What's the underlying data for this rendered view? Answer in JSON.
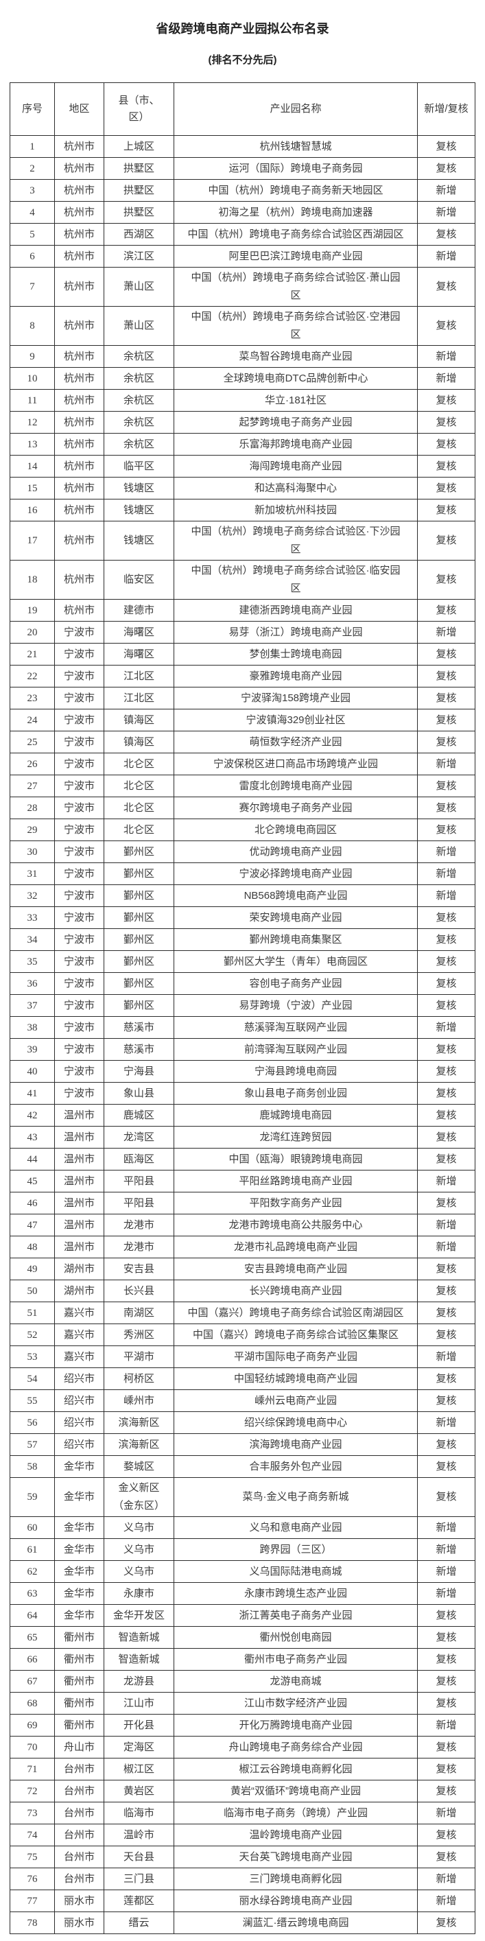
{
  "title": "省级跨境电商产业园拟公布名录",
  "subtitle": "(排名不分先后)",
  "colors": {
    "background": "#ffffff",
    "text": "#3c3c3c",
    "border": "#2b2b2b"
  },
  "table": {
    "headers": {
      "no": "序号",
      "city": "地区",
      "county": "县（市、\n区）",
      "park": "产业园名称",
      "status": "新增/复核"
    },
    "rows": [
      {
        "no": "1",
        "city": "杭州市",
        "county": "上城区",
        "park": "杭州钱塘智慧城",
        "status": "复核"
      },
      {
        "no": "2",
        "city": "杭州市",
        "county": "拱墅区",
        "park": "运河（国际）跨境电子商务园",
        "status": "复核"
      },
      {
        "no": "3",
        "city": "杭州市",
        "county": "拱墅区",
        "park": "中国（杭州）跨境电子商务新天地园区",
        "status": "新增"
      },
      {
        "no": "4",
        "city": "杭州市",
        "county": "拱墅区",
        "park": "初海之星（杭州）跨境电商加速器",
        "status": "新增"
      },
      {
        "no": "5",
        "city": "杭州市",
        "county": "西湖区",
        "park": "中国（杭州）跨境电子商务综合试验区西湖园区",
        "status": "复核"
      },
      {
        "no": "6",
        "city": "杭州市",
        "county": "滨江区",
        "park": "阿里巴巴滨江跨境电商产业园",
        "status": "新增"
      },
      {
        "no": "7",
        "city": "杭州市",
        "county": "萧山区",
        "park": "中国（杭州）跨境电子商务综合试验区·萧山园\n区",
        "status": "复核"
      },
      {
        "no": "8",
        "city": "杭州市",
        "county": "萧山区",
        "park": "中国（杭州）跨境电子商务综合试验区·空港园\n区",
        "status": "复核"
      },
      {
        "no": "9",
        "city": "杭州市",
        "county": "余杭区",
        "park": "菜鸟智谷跨境电商产业园",
        "status": "新增"
      },
      {
        "no": "10",
        "city": "杭州市",
        "county": "余杭区",
        "park": "全球跨境电商DTC品牌创新中心",
        "status": "新增"
      },
      {
        "no": "11",
        "city": "杭州市",
        "county": "余杭区",
        "park": "华立·181社区",
        "status": "复核"
      },
      {
        "no": "12",
        "city": "杭州市",
        "county": "余杭区",
        "park": "起梦跨境电子商务产业园",
        "status": "复核"
      },
      {
        "no": "13",
        "city": "杭州市",
        "county": "余杭区",
        "park": "乐富海邦跨境电商产业园",
        "status": "复核"
      },
      {
        "no": "14",
        "city": "杭州市",
        "county": "临平区",
        "park": "海闯跨境电商产业园",
        "status": "复核"
      },
      {
        "no": "15",
        "city": "杭州市",
        "county": "钱塘区",
        "park": "和达高科海聚中心",
        "status": "复核"
      },
      {
        "no": "16",
        "city": "杭州市",
        "county": "钱塘区",
        "park": "新加坡杭州科技园",
        "status": "复核"
      },
      {
        "no": "17",
        "city": "杭州市",
        "county": "钱塘区",
        "park": "中国（杭州）跨境电子商务综合试验区·下沙园\n区",
        "status": "复核"
      },
      {
        "no": "18",
        "city": "杭州市",
        "county": "临安区",
        "park": "中国（杭州）跨境电子商务综合试验区·临安园\n区",
        "status": "复核"
      },
      {
        "no": "19",
        "city": "杭州市",
        "county": "建德市",
        "park": "建德浙西跨境电商产业园",
        "status": "复核"
      },
      {
        "no": "20",
        "city": "宁波市",
        "county": "海曙区",
        "park": "易芽（浙江）跨境电商产业园",
        "status": "新增"
      },
      {
        "no": "21",
        "city": "宁波市",
        "county": "海曙区",
        "park": "梦创集士跨境电商园",
        "status": "复核"
      },
      {
        "no": "22",
        "city": "宁波市",
        "county": "江北区",
        "park": "豪雅跨境电商产业园",
        "status": "复核"
      },
      {
        "no": "23",
        "city": "宁波市",
        "county": "江北区",
        "park": "宁波驿淘158跨境产业园",
        "status": "复核"
      },
      {
        "no": "24",
        "city": "宁波市",
        "county": "镇海区",
        "park": "宁波镇海329创业社区",
        "status": "复核"
      },
      {
        "no": "25",
        "city": "宁波市",
        "county": "镇海区",
        "park": "萌恒数字经济产业园",
        "status": "复核"
      },
      {
        "no": "26",
        "city": "宁波市",
        "county": "北仑区",
        "park": "宁波保税区进口商品市场跨境产业园",
        "status": "新增"
      },
      {
        "no": "27",
        "city": "宁波市",
        "county": "北仑区",
        "park": "雷度北创跨境电商产业园",
        "status": "复核"
      },
      {
        "no": "28",
        "city": "宁波市",
        "county": "北仑区",
        "park": "赛尔跨境电子商务产业园",
        "status": "复核"
      },
      {
        "no": "29",
        "city": "宁波市",
        "county": "北仑区",
        "park": "北仑跨境电商园区",
        "status": "复核"
      },
      {
        "no": "30",
        "city": "宁波市",
        "county": "鄞州区",
        "park": "优动跨境电商产业园",
        "status": "新增"
      },
      {
        "no": "31",
        "city": "宁波市",
        "county": "鄞州区",
        "park": "宁波必择跨境电商产业园",
        "status": "新增"
      },
      {
        "no": "32",
        "city": "宁波市",
        "county": "鄞州区",
        "park": "NB568跨境电商产业园",
        "status": "新增"
      },
      {
        "no": "33",
        "city": "宁波市",
        "county": "鄞州区",
        "park": "荣安跨境电商产业园",
        "status": "复核"
      },
      {
        "no": "34",
        "city": "宁波市",
        "county": "鄞州区",
        "park": "鄞州跨境电商集聚区",
        "status": "复核"
      },
      {
        "no": "35",
        "city": "宁波市",
        "county": "鄞州区",
        "park": "鄞州区大学生（青年）电商园区",
        "status": "复核"
      },
      {
        "no": "36",
        "city": "宁波市",
        "county": "鄞州区",
        "park": "容创电子商务产业园",
        "status": "复核"
      },
      {
        "no": "37",
        "city": "宁波市",
        "county": "鄞州区",
        "park": "易芽跨境（宁波）产业园",
        "status": "复核"
      },
      {
        "no": "38",
        "city": "宁波市",
        "county": "慈溪市",
        "park": "慈溪驿淘互联网产业园",
        "status": "新增"
      },
      {
        "no": "39",
        "city": "宁波市",
        "county": "慈溪市",
        "park": "前湾驿淘互联网产业园",
        "status": "复核"
      },
      {
        "no": "40",
        "city": "宁波市",
        "county": "宁海县",
        "park": "宁海县跨境电商园",
        "status": "复核"
      },
      {
        "no": "41",
        "city": "宁波市",
        "county": "象山县",
        "park": "象山县电子商务创业园",
        "status": "复核"
      },
      {
        "no": "42",
        "city": "温州市",
        "county": "鹿城区",
        "park": "鹿城跨境电商园",
        "status": "复核"
      },
      {
        "no": "43",
        "city": "温州市",
        "county": "龙湾区",
        "park": "龙湾红连跨贸园",
        "status": "复核"
      },
      {
        "no": "44",
        "city": "温州市",
        "county": "瓯海区",
        "park": "中国（瓯海）眼镜跨境电商园",
        "status": "复核"
      },
      {
        "no": "45",
        "city": "温州市",
        "county": "平阳县",
        "park": "平阳丝路跨境电商产业园",
        "status": "新增"
      },
      {
        "no": "46",
        "city": "温州市",
        "county": "平阳县",
        "park": "平阳数字商务产业园",
        "status": "复核"
      },
      {
        "no": "47",
        "city": "温州市",
        "county": "龙港市",
        "park": "龙港市跨境电商公共服务中心",
        "status": "新增"
      },
      {
        "no": "48",
        "city": "温州市",
        "county": "龙港市",
        "park": "龙港市礼品跨境电商产业园",
        "status": "新增"
      },
      {
        "no": "49",
        "city": "湖州市",
        "county": "安吉县",
        "park": "安吉县跨境电商产业园",
        "status": "复核"
      },
      {
        "no": "50",
        "city": "湖州市",
        "county": "长兴县",
        "park": "长兴跨境电商产业园",
        "status": "复核"
      },
      {
        "no": "51",
        "city": "嘉兴市",
        "county": "南湖区",
        "park": "中国（嘉兴）跨境电子商务综合试验区南湖园区",
        "status": "复核"
      },
      {
        "no": "52",
        "city": "嘉兴市",
        "county": "秀洲区",
        "park": "中国（嘉兴）跨境电子商务综合试验区集聚区",
        "status": "复核"
      },
      {
        "no": "53",
        "city": "嘉兴市",
        "county": "平湖市",
        "park": "平湖市国际电子商务产业园",
        "status": "新增"
      },
      {
        "no": "54",
        "city": "绍兴市",
        "county": "柯桥区",
        "park": "中国轻纺城跨境电商产业园",
        "status": "复核"
      },
      {
        "no": "55",
        "city": "绍兴市",
        "county": "嵊州市",
        "park": "嵊州云电商产业园",
        "status": "复核"
      },
      {
        "no": "56",
        "city": "绍兴市",
        "county": "滨海新区",
        "park": "绍兴综保跨境电商中心",
        "status": "新增"
      },
      {
        "no": "57",
        "city": "绍兴市",
        "county": "滨海新区",
        "park": "滨海跨境电商产业园",
        "status": "复核"
      },
      {
        "no": "58",
        "city": "金华市",
        "county": "婺城区",
        "park": "合丰服务外包产业园",
        "status": "复核"
      },
      {
        "no": "59",
        "city": "金华市",
        "county": "金义新区\n（金东区）",
        "park": "菜鸟·金义电子商务新城",
        "status": "复核"
      },
      {
        "no": "60",
        "city": "金华市",
        "county": "义乌市",
        "park": "义乌和意电商产业园",
        "status": "新增"
      },
      {
        "no": "61",
        "city": "金华市",
        "county": "义乌市",
        "park": "跨界园（三区）",
        "status": "新增"
      },
      {
        "no": "62",
        "city": "金华市",
        "county": "义乌市",
        "park": "义乌国际陆港电商城",
        "status": "新增"
      },
      {
        "no": "63",
        "city": "金华市",
        "county": "永康市",
        "park": "永康市跨境生态产业园",
        "status": "新增"
      },
      {
        "no": "64",
        "city": "金华市",
        "county": "金华开发区",
        "park": "浙江菁英电子商务产业园",
        "status": "复核"
      },
      {
        "no": "65",
        "city": "衢州市",
        "county": "智造新城",
        "park": "衢州悦创电商园",
        "status": "复核"
      },
      {
        "no": "66",
        "city": "衢州市",
        "county": "智造新城",
        "park": "衢州市电子商务产业园",
        "status": "复核"
      },
      {
        "no": "67",
        "city": "衢州市",
        "county": "龙游县",
        "park": "龙游电商城",
        "status": "复核"
      },
      {
        "no": "68",
        "city": "衢州市",
        "county": "江山市",
        "park": "江山市数字经济产业园",
        "status": "复核"
      },
      {
        "no": "69",
        "city": "衢州市",
        "county": "开化县",
        "park": "开化万腾跨境电商产业园",
        "status": "新增"
      },
      {
        "no": "70",
        "city": "舟山市",
        "county": "定海区",
        "park": "舟山跨境电子商务综合产业园",
        "status": "复核"
      },
      {
        "no": "71",
        "city": "台州市",
        "county": "椒江区",
        "park": "椒江云谷跨境电商孵化园",
        "status": "复核"
      },
      {
        "no": "72",
        "city": "台州市",
        "county": "黄岩区",
        "park": "黄岩“双循环”跨境电商产业园",
        "status": "复核"
      },
      {
        "no": "73",
        "city": "台州市",
        "county": "临海市",
        "park": "临海市电子商务（跨境）产业园",
        "status": "新增"
      },
      {
        "no": "74",
        "city": "台州市",
        "county": "温岭市",
        "park": "温岭跨境电商产业园",
        "status": "复核"
      },
      {
        "no": "75",
        "city": "台州市",
        "county": "天台县",
        "park": "天台英飞跨境电商产业园",
        "status": "复核"
      },
      {
        "no": "76",
        "city": "台州市",
        "county": "三门县",
        "park": "三门跨境电商孵化园",
        "status": "新增"
      },
      {
        "no": "77",
        "city": "丽水市",
        "county": "莲都区",
        "park": "丽水绿谷跨境电商产业园",
        "status": "新增"
      },
      {
        "no": "78",
        "city": "丽水市",
        "county": "缙云",
        "park": "澜蓝汇·缙云跨境电商园",
        "status": "复核"
      }
    ]
  }
}
